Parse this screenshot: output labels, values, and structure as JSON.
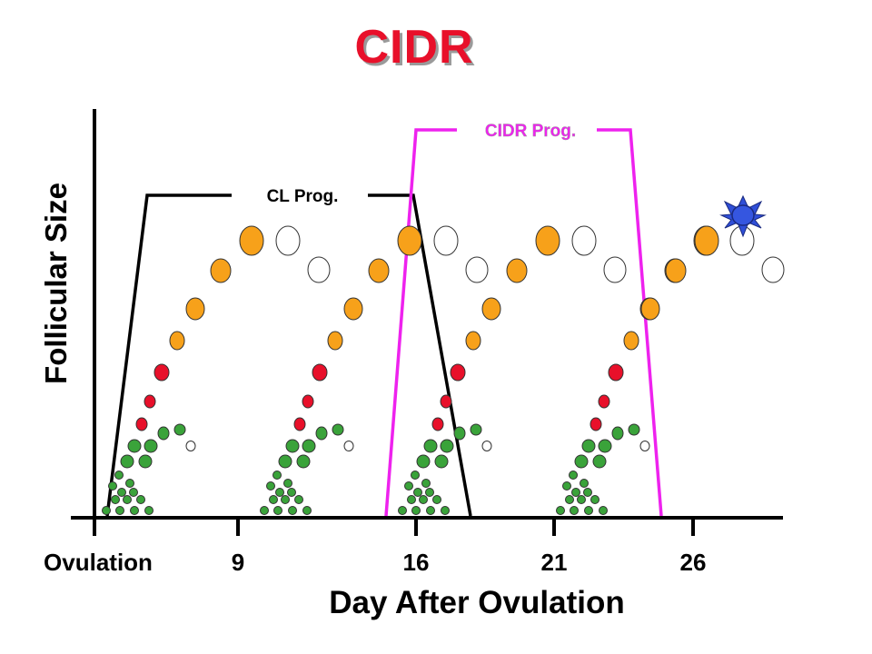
{
  "title": "CIDR",
  "y_axis_label": "Follicular Size",
  "x_axis_label": "Day After Ovulation",
  "x_ticks": [
    "Ovulation",
    "9",
    "16",
    "21",
    "26"
  ],
  "cl_label": "CL Prog.",
  "cidr_label": "CIDR Prog.",
  "colors": {
    "title": "#e8102a",
    "cidr_line": "#ee22ee",
    "cl_line": "#000000",
    "growing_follicle": "#f7a11a",
    "red_follicle": "#e8102a",
    "green_follicle": "#3aa33a",
    "ovulating_follicle": "#2f4fd8",
    "regressing_follicle": "#ffffff"
  }
}
